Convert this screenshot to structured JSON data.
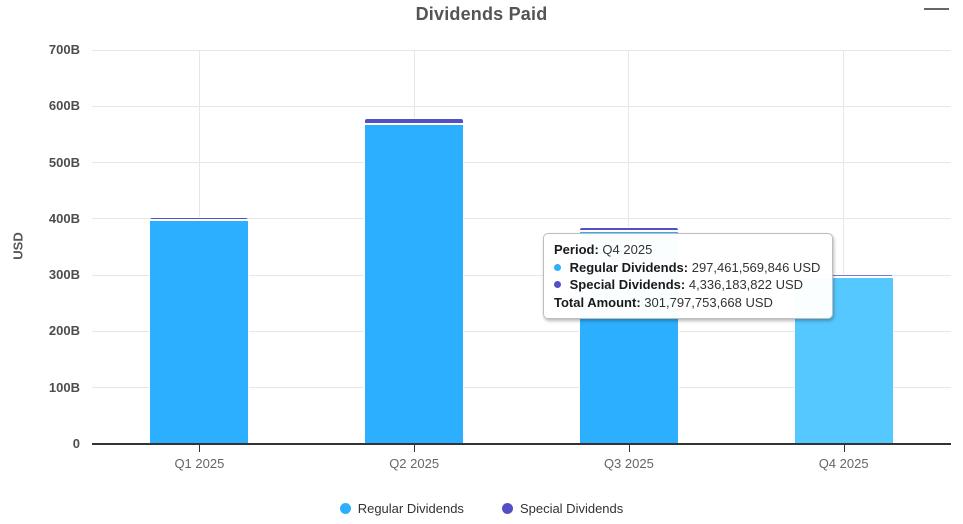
{
  "header": {
    "title": "Dividends Paid"
  },
  "chart_data": {
    "type": "bar",
    "stacked": true,
    "title": "Dividends Paid",
    "categories": [
      "Q1 2025",
      "Q2 2025",
      "Q3 2025",
      "Q4 2025"
    ],
    "series": [
      {
        "name": "Regular Dividends",
        "color": "#2CAFFE",
        "hover_color": "#55C8FF",
        "values_billions": [
          398.5,
          568.4,
          378.5,
          297.461569846
        ]
      },
      {
        "name": "Special Dividends",
        "color": "#544FC5",
        "hover_color": "#7B76D8",
        "values_billions": [
          5.4,
          10.8,
          7.0,
          4.336183822
        ]
      }
    ],
    "hovered_category_index": 3,
    "ylabel": "USD",
    "ylim_billions": [
      0,
      700
    ],
    "ytick_labels": [
      "0",
      "100B",
      "200B",
      "300B",
      "400B",
      "500B",
      "600B",
      "700B"
    ],
    "xlabel": "",
    "grid": true,
    "legend_position": "bottom"
  },
  "tooltip": {
    "period_label": "Period:",
    "period_value": "Q4 2025",
    "rows": [
      {
        "label": "Regular Dividends:",
        "value": "297,461,569,846 USD"
      },
      {
        "label": "Special Dividends:",
        "value": "4,336,183,822 USD"
      }
    ],
    "total_label": "Total Amount:",
    "total_value": "301,797,753,668 USD"
  }
}
